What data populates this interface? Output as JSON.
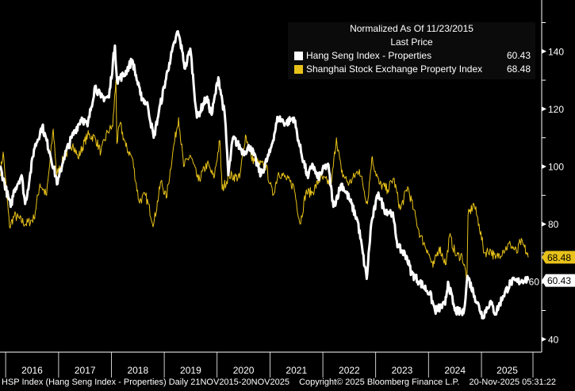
{
  "chart_data": {
    "type": "line",
    "legend": {
      "title": "Normalized As Of 11/23/2015",
      "subtitle": "Last Price",
      "placement": "top-right"
    },
    "y_axis": {
      "side": "right",
      "range": [
        38,
        150
      ],
      "ticks": [
        40,
        60,
        80,
        100,
        120,
        140
      ],
      "labels": [
        "40",
        "60",
        "80",
        "100",
        "120",
        "140"
      ]
    },
    "x_axis": {
      "range": [
        "2015-11-23",
        "2025-11-20"
      ],
      "labels": [
        "2016",
        "2017",
        "2018",
        "2019",
        "2020",
        "2021",
        "2022",
        "2023",
        "2024",
        "2025"
      ]
    },
    "grid": false,
    "series": [
      {
        "name": "Hang Seng Index - Properties",
        "last": "60.43",
        "color": "#ffffff",
        "points": [
          [
            "2015-11-23",
            100
          ],
          [
            "2016-02-05",
            86
          ],
          [
            "2016-03-01",
            92
          ],
          [
            "2016-04-20",
            97
          ],
          [
            "2016-05-15",
            87
          ],
          [
            "2016-06-15",
            96
          ],
          [
            "2016-07-15",
            106
          ],
          [
            "2016-09-10",
            114
          ],
          [
            "2016-11-01",
            105
          ],
          [
            "2016-12-25",
            94
          ],
          [
            "2017-02-05",
            103
          ],
          [
            "2017-04-01",
            110
          ],
          [
            "2017-06-10",
            117
          ],
          [
            "2017-07-20",
            114
          ],
          [
            "2017-09-10",
            128
          ],
          [
            "2017-10-20",
            124
          ],
          [
            "2017-12-15",
            124
          ],
          [
            "2018-01-25",
            142
          ],
          [
            "2018-02-09",
            130
          ],
          [
            "2018-04-01",
            132
          ],
          [
            "2018-05-25",
            137
          ],
          [
            "2018-07-20",
            125
          ],
          [
            "2018-09-10",
            121
          ],
          [
            "2018-10-20",
            110
          ],
          [
            "2018-11-25",
            119
          ],
          [
            "2019-02-05",
            136
          ],
          [
            "2019-04-05",
            147
          ],
          [
            "2019-05-05",
            140
          ],
          [
            "2019-05-25",
            134
          ],
          [
            "2019-06-30",
            141
          ],
          [
            "2019-08-15",
            117
          ],
          [
            "2019-10-20",
            124
          ],
          [
            "2019-11-25",
            118
          ],
          [
            "2020-01-10",
            131
          ],
          [
            "2020-02-25",
            117
          ],
          [
            "2020-03-19",
            97
          ],
          [
            "2020-04-20",
            110
          ],
          [
            "2020-07-01",
            105
          ],
          [
            "2020-08-20",
            107
          ],
          [
            "2020-10-30",
            97
          ],
          [
            "2021-01-01",
            105
          ],
          [
            "2021-02-25",
            117
          ],
          [
            "2021-04-20",
            115
          ],
          [
            "2021-06-15",
            117
          ],
          [
            "2021-07-25",
            107
          ],
          [
            "2021-09-20",
            96
          ],
          [
            "2021-10-20",
            101
          ],
          [
            "2021-11-25",
            96
          ],
          [
            "2022-02-05",
            101
          ],
          [
            "2022-03-15",
            86
          ],
          [
            "2022-05-10",
            94
          ],
          [
            "2022-07-01",
            89
          ],
          [
            "2022-08-30",
            81
          ],
          [
            "2022-10-31",
            61
          ],
          [
            "2022-12-01",
            80
          ],
          [
            "2023-01-20",
            91
          ],
          [
            "2023-03-01",
            85
          ],
          [
            "2023-04-25",
            84
          ],
          [
            "2023-06-05",
            72
          ],
          [
            "2023-08-01",
            69
          ],
          [
            "2023-09-05",
            63
          ],
          [
            "2023-10-30",
            60
          ],
          [
            "2024-01-10",
            56
          ],
          [
            "2024-02-15",
            50
          ],
          [
            "2024-04-25",
            52
          ],
          [
            "2024-05-15",
            60
          ],
          [
            "2024-07-01",
            50
          ],
          [
            "2024-08-30",
            49
          ],
          [
            "2024-09-27",
            62
          ],
          [
            "2024-11-15",
            55
          ],
          [
            "2025-01-10",
            48
          ],
          [
            "2025-03-01",
            53
          ],
          [
            "2025-04-08",
            49
          ],
          [
            "2025-05-30",
            55
          ],
          [
            "2025-07-25",
            60
          ],
          [
            "2025-09-10",
            60
          ],
          [
            "2025-10-30",
            61
          ],
          [
            "2025-11-20",
            60.43
          ]
        ]
      },
      {
        "name": "Shanghai Stock Exchange Property Index",
        "last": "68.48",
        "color": "#e8c21a",
        "points": [
          [
            "2015-11-23",
            97
          ],
          [
            "2015-12-15",
            105
          ],
          [
            "2016-01-28",
            79
          ],
          [
            "2016-03-01",
            83
          ],
          [
            "2016-05-20",
            80
          ],
          [
            "2016-07-15",
            82
          ],
          [
            "2016-08-25",
            94
          ],
          [
            "2016-10-10",
            90
          ],
          [
            "2016-11-25",
            113
          ],
          [
            "2016-12-20",
            97
          ],
          [
            "2017-02-05",
            103
          ],
          [
            "2017-04-10",
            108
          ],
          [
            "2017-05-15",
            103
          ],
          [
            "2017-07-20",
            111
          ],
          [
            "2017-09-10",
            110
          ],
          [
            "2017-10-20",
            105
          ],
          [
            "2017-12-05",
            112
          ],
          [
            "2018-01-10",
            114
          ],
          [
            "2018-02-01",
            130
          ],
          [
            "2018-02-08",
            108
          ],
          [
            "2018-03-01",
            115
          ],
          [
            "2018-04-10",
            107
          ],
          [
            "2018-05-25",
            103
          ],
          [
            "2018-07-10",
            88
          ],
          [
            "2018-08-25",
            90
          ],
          [
            "2018-10-20",
            80
          ],
          [
            "2018-12-10",
            95
          ],
          [
            "2019-01-15",
            89
          ],
          [
            "2019-03-01",
            105
          ],
          [
            "2019-04-10",
            117
          ],
          [
            "2019-05-15",
            100
          ],
          [
            "2019-06-30",
            104
          ],
          [
            "2019-08-25",
            95
          ],
          [
            "2019-10-25",
            101
          ],
          [
            "2019-12-10",
            96
          ],
          [
            "2020-01-20",
            109
          ],
          [
            "2020-02-05",
            92
          ],
          [
            "2020-03-25",
            97
          ],
          [
            "2020-06-05",
            96
          ],
          [
            "2020-07-15",
            111
          ],
          [
            "2020-08-25",
            103
          ],
          [
            "2020-10-15",
            101
          ],
          [
            "2020-12-05",
            100
          ],
          [
            "2021-01-01",
            94
          ],
          [
            "2021-01-20",
            90
          ],
          [
            "2021-03-01",
            98
          ],
          [
            "2021-04-20",
            96
          ],
          [
            "2021-06-15",
            93
          ],
          [
            "2021-07-28",
            80
          ],
          [
            "2021-09-05",
            91
          ],
          [
            "2021-10-20",
            91
          ],
          [
            "2021-12-15",
            96
          ],
          [
            "2022-03-01",
            94
          ],
          [
            "2022-04-05",
            110
          ],
          [
            "2022-05-10",
            98
          ],
          [
            "2022-07-01",
            94
          ],
          [
            "2022-09-10",
            99
          ],
          [
            "2022-11-05",
            87
          ],
          [
            "2022-12-05",
            103
          ],
          [
            "2023-01-25",
            94
          ],
          [
            "2023-03-25",
            92
          ],
          [
            "2023-05-05",
            96
          ],
          [
            "2023-06-20",
            85
          ],
          [
            "2023-08-10",
            93
          ],
          [
            "2023-09-20",
            85
          ],
          [
            "2023-11-05",
            76
          ],
          [
            "2023-12-25",
            71
          ],
          [
            "2024-02-01",
            65
          ],
          [
            "2024-03-15",
            72
          ],
          [
            "2024-05-01",
            66
          ],
          [
            "2024-05-25",
            76
          ],
          [
            "2024-07-10",
            69
          ],
          [
            "2024-08-20",
            69
          ],
          [
            "2024-09-23",
            61
          ],
          [
            "2024-09-30",
            83
          ],
          [
            "2024-11-10",
            87
          ],
          [
            "2024-12-15",
            80
          ],
          [
            "2025-01-20",
            70
          ],
          [
            "2025-03-05",
            71
          ],
          [
            "2025-04-08",
            68
          ],
          [
            "2025-06-01",
            71
          ],
          [
            "2025-07-20",
            73
          ],
          [
            "2025-09-05",
            70
          ],
          [
            "2025-09-25",
            74
          ],
          [
            "2025-10-25",
            72
          ],
          [
            "2025-11-20",
            68.48
          ]
        ]
      }
    ]
  },
  "footer": {
    "security": "HSP Index (Hang Seng Index - Properties) Daily 21NOV2015-20NOV2025",
    "copyright": "Copyright© 2025 Bloomberg Finance L.P.",
    "timestamp": "20-Nov-2025 05:31:22"
  }
}
